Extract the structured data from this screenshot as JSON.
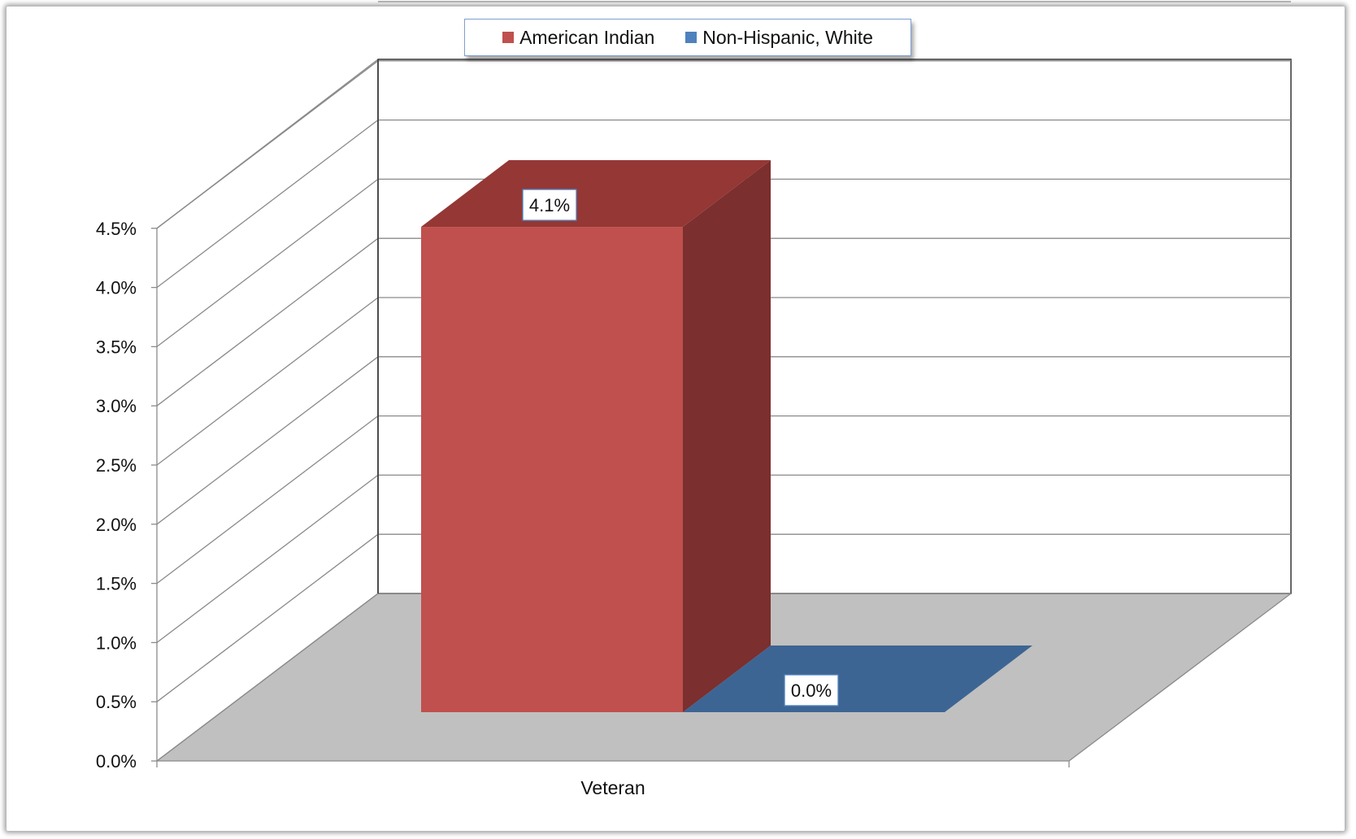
{
  "chart_data": {
    "type": "bar",
    "style": "3d-clustered-column",
    "categories": [
      "Veteran"
    ],
    "series": [
      {
        "name": "American Indian",
        "values": [
          0.041
        ],
        "color": "#c0504d",
        "color_top": "#943735",
        "color_side": "#7b2f2e",
        "label": "4.1%"
      },
      {
        "name": "Non-Hispanic, White",
        "values": [
          0.0
        ],
        "color": "#4f81bd",
        "color_top": "#3d6593",
        "color_side": "#355a86",
        "label": "0.0%"
      }
    ],
    "ylim": [
      0,
      0.045
    ],
    "yticks": [
      0,
      0.005,
      0.01,
      0.015,
      0.02,
      0.025,
      0.03,
      0.035,
      0.04,
      0.045
    ],
    "ytick_labels": [
      "0.0%",
      "0.5%",
      "1.0%",
      "1.5%",
      "2.0%",
      "2.5%",
      "3.0%",
      "3.5%",
      "4.0%",
      "4.5%"
    ],
    "grid": true,
    "legend": "top-center",
    "title": "",
    "xlabel": "",
    "ylabel": ""
  }
}
